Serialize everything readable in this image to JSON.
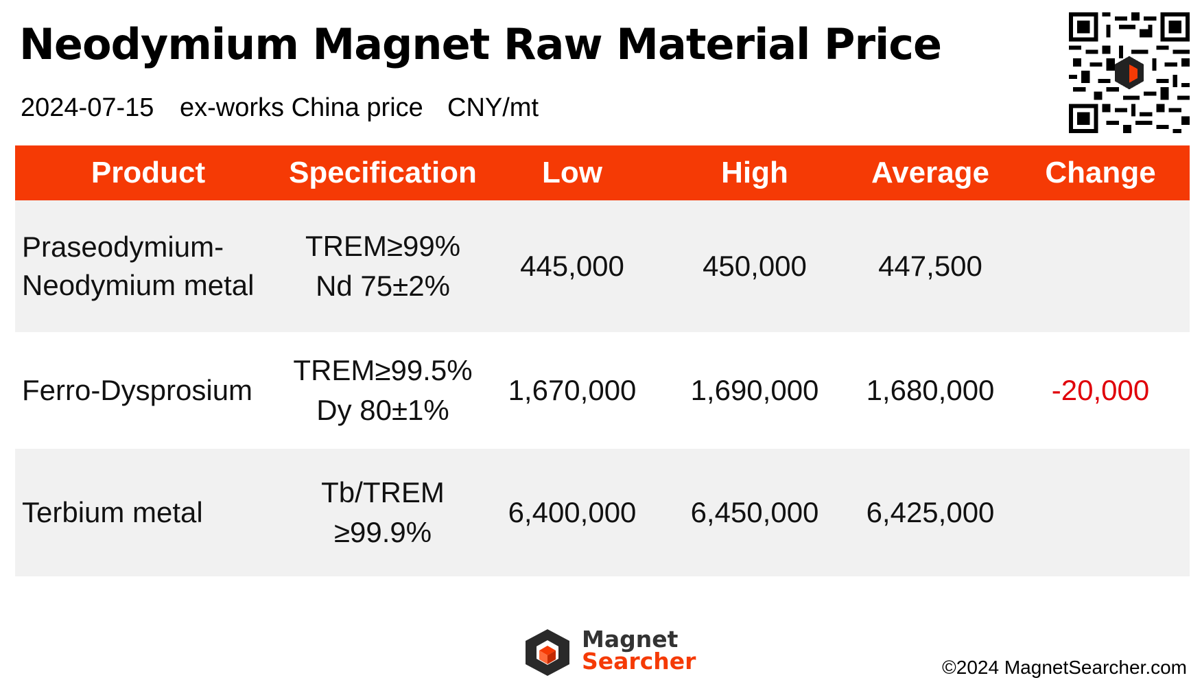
{
  "header": {
    "title": "Neodymium Magnet Raw Material Price",
    "date": "2024-07-15",
    "basis": "ex-works China price",
    "unit": "CNY/mt"
  },
  "table": {
    "columns": [
      "Product",
      "Specification",
      "Low",
      "High",
      "Average",
      "Change"
    ],
    "rows": [
      {
        "product": [
          "Praseodymium-",
          "Neodymium metal"
        ],
        "spec": [
          "TREM≥99%",
          "Nd 75±2%"
        ],
        "low": "445,000",
        "high": "450,000",
        "average": "447,500",
        "change": ""
      },
      {
        "product": [
          "Ferro-Dysprosium"
        ],
        "spec": [
          "TREM≥99.5%",
          "Dy 80±1%"
        ],
        "low": "1,670,000",
        "high": "1,690,000",
        "average": "1,680,000",
        "change": "-20,000"
      },
      {
        "product": [
          "Terbium metal"
        ],
        "spec": [
          "Tb/TREM",
          "≥99.9%"
        ],
        "low": "6,400,000",
        "high": "6,450,000",
        "average": "6,425,000",
        "change": ""
      }
    ]
  },
  "footer": {
    "logo_line1": "Magnet",
    "logo_line2": "Searcher",
    "copyright": "©2024 MagnetSearcher.com"
  },
  "colors": {
    "header_bg": "#f53a05",
    "negative": "#e0000a",
    "row_shade": "#f1f1f1"
  },
  "icons": {
    "qr": "qr-code-icon",
    "logo": "magnet-searcher-logo-icon"
  }
}
